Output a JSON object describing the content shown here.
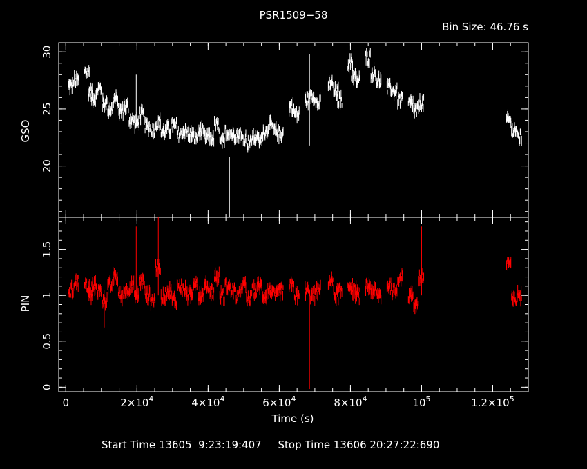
{
  "header": {
    "title": "PSR1509−58",
    "bin_size": "Bin Size: 46.76 s"
  },
  "footer": {
    "start_label": "Start Time",
    "start_value": "13605  9:23:19:407",
    "stop_label": "Stop Time",
    "stop_value": "13606 20:27:22:690"
  },
  "colors": {
    "background": "#000000",
    "gso": "#ffffff",
    "pin": "#ff0000",
    "axes": "#ffffff"
  },
  "chart_data": [
    {
      "type": "line",
      "ylabel": "GSO",
      "xlim": [
        -2000,
        130000
      ],
      "ylim": [
        15.5,
        30.8
      ],
      "yticks": [
        20,
        25,
        30
      ],
      "ytick_labels": [
        "20",
        "25",
        "30"
      ],
      "series": [
        {
          "color": "#ffffff",
          "x": [
            1500,
            3000,
            6000,
            7000,
            8000,
            9500,
            11000,
            12500,
            14000,
            15500,
            17000,
            18500,
            20000,
            21500,
            23000,
            24500,
            26000,
            27500,
            29000,
            30500,
            32000,
            33500,
            35000,
            36500,
            38000,
            39500,
            41000,
            42500,
            44000,
            45500,
            47000,
            48500,
            50000,
            51500,
            53000,
            54500,
            56000,
            57500,
            59000,
            60500,
            63500,
            65000,
            68000,
            69500,
            71000,
            74500,
            76000,
            77000,
            80000,
            81000,
            82000,
            85000,
            86500,
            88000,
            91000,
            92500,
            94000,
            97000,
            98500,
            100000,
            124500,
            126000,
            127500
          ],
          "y": [
            27.0,
            27.5,
            28.2,
            26.5,
            26.0,
            26.8,
            25.5,
            25.0,
            25.8,
            24.8,
            25.2,
            24.0,
            23.8,
            24.5,
            23.5,
            23.2,
            23.8,
            23.0,
            23.2,
            23.5,
            22.8,
            23.0,
            22.8,
            22.5,
            23.0,
            22.5,
            22.5,
            23.5,
            22.0,
            23.0,
            22.8,
            22.8,
            22.5,
            22.0,
            22.5,
            22.2,
            23.0,
            23.5,
            23.0,
            22.8,
            25.2,
            24.5,
            25.8,
            26.2,
            25.5,
            27.2,
            26.5,
            25.8,
            29.0,
            28.0,
            27.5,
            29.5,
            28.2,
            27.5,
            26.8,
            26.5,
            25.8,
            25.5,
            24.8,
            25.5,
            24.0,
            23.2,
            22.5
          ],
          "outliers": [
            {
              "x": 46000,
              "low": 15.5,
              "high": 20.8
            },
            {
              "x": 68500,
              "low": 21.8,
              "high": 29.8
            },
            {
              "x": 19800,
              "low": 24.0,
              "high": 28.0
            }
          ]
        }
      ]
    },
    {
      "type": "line",
      "xlabel": "Time (s)",
      "ylabel": "PIN",
      "xlim": [
        -2000,
        130000
      ],
      "ylim": [
        -0.05,
        1.85
      ],
      "yticks": [
        0,
        0.5,
        1,
        1.5
      ],
      "ytick_labels": [
        "0",
        "0.5",
        "1",
        "1.5"
      ],
      "xticks": [
        0,
        20000,
        40000,
        60000,
        80000,
        100000,
        120000
      ],
      "xtick_labels": [
        {
          "base": "0",
          "exp": ""
        },
        {
          "base": "2×10",
          "exp": "4"
        },
        {
          "base": "4×10",
          "exp": "4"
        },
        {
          "base": "6×10",
          "exp": "4"
        },
        {
          "base": "8×10",
          "exp": "4"
        },
        {
          "base": "10",
          "exp": "5"
        },
        {
          "base": "1.2×10",
          "exp": "5"
        }
      ],
      "series": [
        {
          "color": "#ff0000",
          "x": [
            1500,
            3000,
            6000,
            7000,
            8000,
            9500,
            11000,
            12500,
            14000,
            15500,
            17000,
            18500,
            20000,
            21500,
            23000,
            24500,
            26000,
            27500,
            29000,
            30500,
            32000,
            33500,
            35000,
            36500,
            38000,
            39500,
            41000,
            42500,
            44000,
            45500,
            47000,
            48500,
            50000,
            51500,
            53000,
            54500,
            56000,
            57500,
            59000,
            60500,
            63500,
            65000,
            68000,
            69500,
            71000,
            74500,
            76000,
            77000,
            80000,
            81000,
            82000,
            85000,
            86500,
            88000,
            91000,
            92500,
            94000,
            97000,
            98500,
            100000,
            124500,
            126000,
            127500
          ],
          "y": [
            1.05,
            1.15,
            1.1,
            1.0,
            1.1,
            1.05,
            0.95,
            1.1,
            1.2,
            1.0,
            1.05,
            1.1,
            1.0,
            1.15,
            1.0,
            0.95,
            1.3,
            1.0,
            1.05,
            0.95,
            1.1,
            1.05,
            1.0,
            1.15,
            1.0,
            1.1,
            1.05,
            1.2,
            1.0,
            1.1,
            1.05,
            1.0,
            1.1,
            0.95,
            1.05,
            1.1,
            1.0,
            1.05,
            1.0,
            1.05,
            1.1,
            1.0,
            1.05,
            1.0,
            1.05,
            1.15,
            1.0,
            1.05,
            1.1,
            1.05,
            1.0,
            1.1,
            1.05,
            1.0,
            1.1,
            1.05,
            1.2,
            1.0,
            0.9,
            1.2,
            1.35,
            0.95,
            1.0
          ],
          "outliers": [
            {
              "x": 68500,
              "low": -0.02,
              "high": 1.05
            },
            {
              "x": 26000,
              "low": 1.0,
              "high": 1.85
            },
            {
              "x": 19800,
              "low": 0.95,
              "high": 1.75
            },
            {
              "x": 100000,
              "low": 1.0,
              "high": 1.75
            },
            {
              "x": 10800,
              "low": 0.65,
              "high": 1.0
            }
          ]
        }
      ]
    }
  ]
}
